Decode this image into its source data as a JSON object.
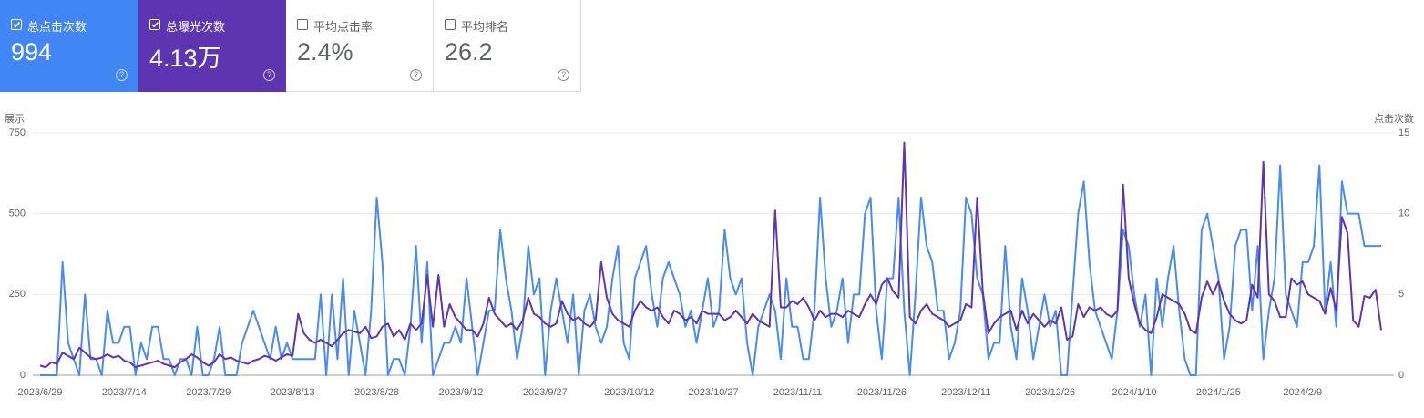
{
  "cards": [
    {
      "label": "总点击次数",
      "value": "994",
      "selected": true,
      "color": "#4285f4"
    },
    {
      "label": "总曝光次数",
      "value": "4.13万",
      "selected": true,
      "color": "#5e35b1"
    },
    {
      "label": "平均点击率",
      "value": "2.4%",
      "selected": false,
      "color": "#ffffff"
    },
    {
      "label": "平均排名",
      "value": "26.2",
      "selected": false,
      "color": "#ffffff"
    }
  ],
  "chart_data": {
    "type": "line",
    "ylabel": "展示",
    "y2label": "点击次数",
    "ylim": [
      0,
      750
    ],
    "yticks": [
      0,
      250,
      500,
      750
    ],
    "y2lim": [
      0,
      15
    ],
    "y2ticks": [
      0,
      5,
      10,
      15
    ],
    "grid": true,
    "categories": [
      "2023/6/29",
      null,
      null,
      null,
      null,
      null,
      null,
      null,
      null,
      null,
      null,
      null,
      null,
      null,
      null,
      "2023/7/14",
      null,
      null,
      null,
      null,
      null,
      null,
      null,
      null,
      null,
      null,
      null,
      null,
      null,
      null,
      "2023/7/29",
      null,
      null,
      null,
      null,
      null,
      null,
      null,
      null,
      null,
      null,
      null,
      null,
      null,
      null,
      "2023/8/13",
      null,
      null,
      null,
      null,
      null,
      null,
      null,
      null,
      null,
      null,
      null,
      null,
      null,
      null,
      "2023/8/28",
      null,
      null,
      null,
      null,
      null,
      null,
      null,
      null,
      null,
      null,
      null,
      null,
      null,
      null,
      "2023/9/12",
      null,
      null,
      null,
      null,
      null,
      null,
      null,
      null,
      null,
      null,
      null,
      null,
      null,
      null,
      "2023/9/27",
      null,
      null,
      null,
      null,
      null,
      null,
      null,
      null,
      null,
      null,
      null,
      null,
      null,
      null,
      "2023/10/12",
      null,
      null,
      null,
      null,
      null,
      null,
      null,
      null,
      null,
      null,
      null,
      null,
      null,
      null,
      "2023/10/27",
      null,
      null,
      null,
      null,
      null,
      null,
      null,
      null,
      null,
      null,
      null,
      null,
      null,
      null,
      "2023/11/11",
      null,
      null,
      null,
      null,
      null,
      null,
      null,
      null,
      null,
      null,
      null,
      null,
      null,
      null,
      "2023/11/26",
      null,
      null,
      null,
      null,
      null,
      null,
      null,
      null,
      null,
      null,
      null,
      null,
      null,
      null,
      "2023/12/11",
      null,
      null,
      null,
      null,
      null,
      null,
      null,
      null,
      null,
      null,
      null,
      null,
      null,
      null,
      "2023/12/26",
      null,
      null,
      null,
      null,
      null,
      null,
      null,
      null,
      null,
      null,
      null,
      null,
      null,
      null,
      "2024/1/10",
      null,
      null,
      null,
      null,
      null,
      null,
      null,
      null,
      null,
      null,
      null,
      null,
      null,
      null,
      "2024/1/25",
      null,
      null,
      null,
      null,
      null,
      null,
      null,
      null,
      null,
      null,
      null,
      null,
      null,
      null,
      "2024/2/9",
      null,
      null,
      null,
      null,
      null,
      null,
      null,
      null,
      null,
      null,
      null,
      null,
      null,
      null
    ],
    "series": [
      {
        "color": "#4a8af4",
        "axis": "y2",
        "values": [
          0,
          0,
          0,
          0,
          7,
          2,
          1,
          0,
          5,
          1,
          1,
          0,
          4,
          2,
          2,
          3,
          3,
          0,
          2,
          1,
          3,
          3,
          1,
          1,
          0,
          1,
          1,
          0,
          3,
          0,
          0,
          1,
          3,
          0,
          0,
          0,
          2,
          3,
          4,
          3,
          2,
          1,
          3,
          1,
          2,
          1,
          1,
          1,
          1,
          1,
          5,
          0,
          5,
          1,
          6,
          0,
          4,
          2,
          0,
          4,
          11,
          7,
          0,
          1,
          1,
          0,
          3,
          8,
          2,
          7,
          0,
          1,
          2,
          2,
          3,
          2,
          6,
          3,
          0,
          2,
          4,
          4,
          9,
          6,
          4,
          1,
          3,
          8,
          5,
          6,
          0,
          4,
          6,
          4,
          2,
          5,
          0,
          4,
          5,
          3,
          2,
          3,
          6,
          8,
          2,
          1,
          6,
          7,
          8,
          5,
          3,
          6,
          7,
          6,
          5,
          3,
          4,
          2,
          4,
          6,
          3,
          4,
          9,
          6,
          5,
          6,
          2,
          0,
          3,
          4,
          5,
          4,
          1,
          6,
          3,
          3,
          1,
          1,
          4,
          11,
          6,
          3,
          4,
          6,
          2,
          5,
          5,
          10,
          11,
          4,
          1,
          6,
          6,
          11,
          4,
          0,
          5,
          11,
          8,
          7,
          4,
          4,
          1,
          2,
          4,
          11,
          10,
          6,
          5,
          1,
          2,
          2,
          8,
          3,
          1,
          6,
          4,
          1,
          3,
          5,
          3,
          4,
          0,
          0,
          5,
          10,
          12,
          7,
          4,
          3,
          2,
          1,
          4,
          9,
          8,
          5,
          3,
          5,
          0,
          6,
          3,
          6,
          8,
          4,
          1,
          0,
          0,
          9,
          10,
          8,
          6,
          1,
          3,
          8,
          9,
          9,
          4,
          8,
          1,
          4,
          6,
          13,
          5,
          4,
          3,
          7,
          7,
          8,
          13,
          4,
          7,
          3,
          12,
          10,
          10,
          10,
          8,
          8,
          8,
          8
        ]
      },
      {
        "color": "#5e35b1",
        "axis": "y",
        "values": [
          30,
          25,
          40,
          35,
          70,
          60,
          50,
          85,
          70,
          55,
          50,
          55,
          65,
          55,
          60,
          45,
          40,
          25,
          30,
          35,
          40,
          45,
          35,
          30,
          25,
          40,
          50,
          65,
          55,
          40,
          30,
          40,
          65,
          50,
          55,
          45,
          40,
          35,
          45,
          50,
          60,
          55,
          45,
          55,
          65,
          60,
          190,
          130,
          110,
          100,
          110,
          100,
          90,
          110,
          130,
          140,
          135,
          130,
          150,
          115,
          120,
          150,
          160,
          120,
          140,
          110,
          160,
          140,
          160,
          310,
          150,
          310,
          150,
          220,
          180,
          160,
          140,
          140,
          120,
          160,
          240,
          190,
          170,
          150,
          160,
          140,
          170,
          240,
          190,
          180,
          160,
          150,
          160,
          230,
          190,
          170,
          180,
          160,
          150,
          170,
          350,
          240,
          190,
          170,
          160,
          150,
          200,
          230,
          210,
          200,
          210,
          180,
          160,
          200,
          190,
          170,
          180,
          160,
          200,
          190,
          190,
          190,
          170,
          180,
          200,
          180,
          160,
          190,
          170,
          160,
          150,
          510,
          210,
          210,
          230,
          220,
          240,
          210,
          170,
          200,
          180,
          190,
          190,
          180,
          200,
          190,
          180,
          220,
          250,
          220,
          280,
          300,
          260,
          240,
          720,
          180,
          160,
          200,
          220,
          190,
          180,
          170,
          150,
          160,
          170,
          220,
          210,
          550,
          260,
          130,
          160,
          180,
          190,
          200,
          140,
          200,
          160,
          190,
          170,
          150,
          170,
          160,
          210,
          110,
          120,
          220,
          180,
          210,
          200,
          210,
          190,
          180,
          200,
          590,
          300,
          220,
          160,
          140,
          130,
          180,
          250,
          240,
          230,
          220,
          190,
          140,
          130,
          240,
          290,
          250,
          290,
          230,
          190,
          170,
          160,
          170,
          280,
          240,
          660,
          250,
          230,
          180,
          180,
          300,
          280,
          290,
          250,
          240,
          230,
          190,
          270,
          200,
          490,
          440,
          170,
          150,
          245,
          240,
          265,
          140
        ]
      }
    ]
  }
}
